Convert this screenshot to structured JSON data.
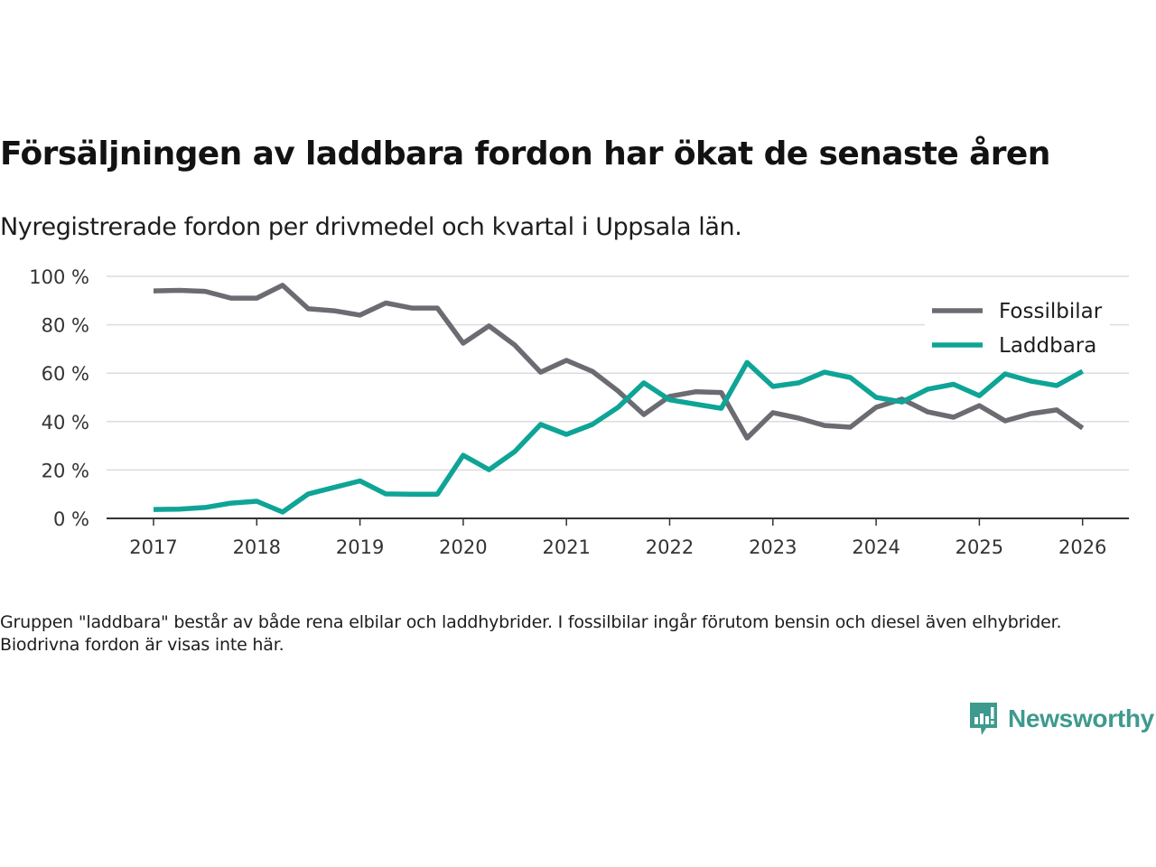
{
  "header": {
    "title": "Försäljningen av laddbara fordon har ökat de senaste åren",
    "subtitle": "Nyregistrerade fordon per drivmedel och kvartal i Uppsala län."
  },
  "footnote": "Gruppen \"laddbara\" består av både rena elbilar och laddhybrider. I fossilbilar ingår förutom bensin och diesel även elhybrider. Biodrivna fordon är visas inte här.",
  "brand": {
    "name": "Newsworthy",
    "icon": "newsworthy-logo-icon",
    "color": "#3e9a8e"
  },
  "chart_data": {
    "type": "line",
    "title": "Försäljningen av laddbara fordon har ökat de senaste åren",
    "subtitle": "Nyregistrerade fordon per drivmedel och kvartal i Uppsala län.",
    "xlabel": "",
    "ylabel": "",
    "x": [
      "2017Q1",
      "2017Q2",
      "2017Q3",
      "2017Q4",
      "2018Q1",
      "2018Q2",
      "2018Q3",
      "2018Q4",
      "2019Q1",
      "2019Q2",
      "2019Q3",
      "2019Q4",
      "2020Q1",
      "2020Q2",
      "2020Q3",
      "2020Q4",
      "2021Q1",
      "2021Q2",
      "2021Q3",
      "2021Q4",
      "2022Q1",
      "2022Q2",
      "2022Q3",
      "2022Q4",
      "2023Q1",
      "2023Q2",
      "2023Q3",
      "2023Q4",
      "2024Q1",
      "2024Q2",
      "2024Q3",
      "2024Q4",
      "2025Q1",
      "2025Q2",
      "2025Q3",
      "2025Q4",
      "2026Q1"
    ],
    "x_tick_labels": [
      "2017",
      "2018",
      "2019",
      "2020",
      "2021",
      "2022",
      "2023",
      "2024",
      "2025",
      "2026"
    ],
    "y_tick_labels": [
      "0 %",
      "20 %",
      "40 %",
      "60 %",
      "80 %",
      "100 %"
    ],
    "y_ticks": [
      0,
      20,
      40,
      60,
      80,
      100
    ],
    "ylim": [
      0,
      100
    ],
    "xlim": [
      2016.55,
      2026.45
    ],
    "grid": true,
    "legend_position": "top-right",
    "series": [
      {
        "name": "Fossilbilar",
        "color": "#6d6b72",
        "values": [
          94.0,
          94.2,
          93.8,
          91.0,
          91.0,
          96.3,
          86.6,
          85.8,
          84.0,
          89.0,
          86.9,
          86.9,
          72.4,
          79.5,
          71.6,
          60.4,
          65.3,
          60.8,
          52.6,
          42.9,
          50.4,
          52.3,
          52.0,
          33.2,
          43.7,
          41.4,
          38.4,
          37.7,
          45.9,
          49.3,
          44.0,
          41.8,
          46.6,
          40.3,
          43.3,
          44.8,
          37.3
        ]
      },
      {
        "name": "Laddbara",
        "color": "#0ea496",
        "values": [
          3.7,
          3.8,
          4.5,
          6.3,
          7.1,
          2.6,
          10.1,
          12.8,
          15.5,
          10.1,
          10.0,
          10.0,
          26.1,
          20.1,
          27.6,
          38.8,
          34.7,
          38.8,
          45.9,
          56.0,
          49.0,
          47.2,
          45.5,
          64.4,
          54.5,
          56.0,
          60.4,
          58.2,
          50.0,
          48.1,
          53.4,
          55.4,
          50.7,
          59.7,
          56.7,
          54.9,
          60.8
        ]
      }
    ]
  }
}
